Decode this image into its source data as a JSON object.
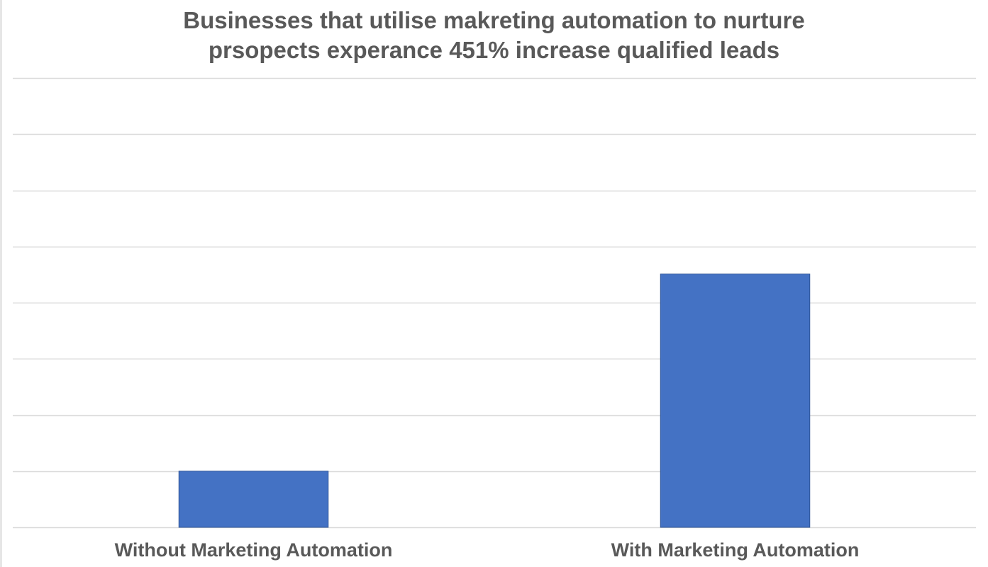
{
  "chart_data": {
    "type": "bar",
    "title_lines": [
      "Businesses that utilise makreting automation to nurture",
      "prsopects experance 451% increase qualified leads"
    ],
    "categories": [
      "Without Marketing Automation",
      "With Marketing Automation"
    ],
    "values": [
      1,
      4.51
    ],
    "ylim": [
      0,
      8
    ],
    "y_gridlines": 8,
    "grid": true,
    "legend": "none",
    "yaxis_labels": "none",
    "bar_color": "#4472c4",
    "grid_color": "#d9d9d9",
    "text_color": "#595959"
  }
}
